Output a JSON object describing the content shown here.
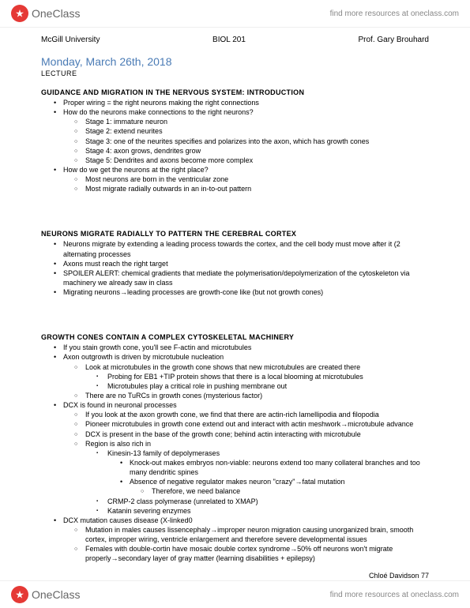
{
  "brand": {
    "name": "OneClass",
    "findMore": "find more resources at oneclass.com"
  },
  "header": {
    "left": "McGill University",
    "center": "BIOL 201",
    "right": "Prof. Gary Brouhard"
  },
  "date": "Monday, March 26th, 2018",
  "lectureLabel": "LECTURE",
  "sections": [
    {
      "title": "GUIDANCE AND MIGRATION IN THE NERVOUS SYSTEM: INTRODUCTION",
      "items": [
        {
          "t": "Proper wiring = the right neurons making the right connections"
        },
        {
          "t": "How do the neurons make connections to the right neurons?",
          "c": [
            {
              "t": "Stage 1: immature neuron"
            },
            {
              "t": "Stage 2: extend neurites"
            },
            {
              "t": "Stage 3: one of the neurites specifies and polarizes into the axon, which has growth cones"
            },
            {
              "t": "Stage 4: axon grows, dendrites grow"
            },
            {
              "t": "Stage 5: Dendrites and axons become more complex"
            }
          ]
        },
        {
          "t": "How do we get the neurons at the right place?",
          "c": [
            {
              "t": "Most neurons are born in the ventricular zone"
            },
            {
              "t": "Most migrate radially outwards in an in-to-out pattern"
            }
          ]
        }
      ]
    },
    {
      "title": "NEURONS MIGRATE RADIALLY TO PATTERN THE CEREBRAL CORTEX",
      "items": [
        {
          "t": "Neurons migrate by extending a leading process towards the cortex, and the cell body must move after it (2 alternating processes"
        },
        {
          "t": "Axons must reach the right target"
        },
        {
          "t": "SPOILER ALERT: chemical gradients that mediate the polymerisation/depolymerization of the cytoskeleton via machinery we already saw in class"
        },
        {
          "t": "Migrating neurons→leading processes are growth-cone like (but not growth cones)"
        }
      ]
    },
    {
      "title": "GROWTH CONES CONTAIN A COMPLEX CYTOSKELETAL MACHINERY",
      "items": [
        {
          "t": "If you stain growth cone, you'll see F-actin and microtubules"
        },
        {
          "t": "Axon outgrowth is driven by microtubule nucleation",
          "c": [
            {
              "t": "Look at microtubules in the growth cone shows that new microtubules are created there",
              "c": [
                {
                  "t": "Probing for EB1 +TIP protein shows that there is a local blooming at microtubules"
                },
                {
                  "t": "Microtubules play a critical role in pushing membrane out"
                }
              ]
            },
            {
              "t": "There are no TuRCs in growth cones (mysterious factor)"
            }
          ]
        },
        {
          "t": "DCX is found in neuronal processes",
          "c": [
            {
              "t": "If you look at the axon growth cone, we find that there are actin-rich lamellipodia and filopodia"
            },
            {
              "t": "Pioneer microtubules in growth cone extend out and interact with actin meshwork→microtubule advance"
            },
            {
              "t": "DCX is present in the base of the growth cone; behind actin interacting with microtubule"
            },
            {
              "t": "Region is also rich in",
              "c": [
                {
                  "t": "Kinesin-13 family of depolymerases",
                  "c": [
                    {
                      "t": "Knock-out makes embryos non-viable: neurons extend too many collateral branches and too many dendritic spines"
                    },
                    {
                      "t": "Absence of negative regulator makes neuron \"crazy\"→fatal mutation",
                      "c": [
                        {
                          "t": "Therefore, we need balance"
                        }
                      ]
                    }
                  ]
                },
                {
                  "t": "CRMP-2 class polymerase (unrelated to XMAP)"
                },
                {
                  "t": "Katanin severing enzymes"
                }
              ]
            }
          ]
        },
        {
          "t": "DCX mutation causes disease (X-linked0",
          "c": [
            {
              "t": "Mutation in males causes lissencephaly→improper neuron migration causing unorganized brain, smooth cortex, improper wiring, ventricle enlargement and therefore severe developmental issues"
            },
            {
              "t": "Females with double-cortin have mosaic double cortex syndrome→50% off neurons won't migrate properly→secondary layer of gray matter (learning disabilities + epilepsy)"
            }
          ]
        }
      ]
    }
  ],
  "footer": {
    "author": "Chloé Davidson 77"
  }
}
